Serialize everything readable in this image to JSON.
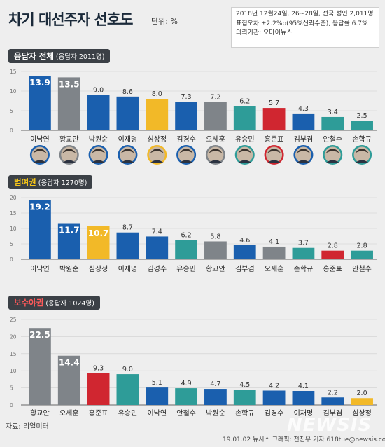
{
  "header": {
    "title": "차기 대선주자 선호도",
    "unit": "단위: %",
    "info_lines": [
      "2018년 12월24일, 26~28일, 전국 성인 2,011명",
      "표집오차 ±2.2%p(95%신뢰수준), 응답률 6.7%",
      "의뢰기관: 오마이뉴스"
    ]
  },
  "colors": {
    "blue": "#1a5fae",
    "gray": "#7f8489",
    "yellow": "#f2b928",
    "teal": "#2e9c98",
    "red": "#d02630",
    "axis": "#666666",
    "grid": "#cfcfcf"
  },
  "chart_data": [
    {
      "type": "bar",
      "title": "응답자 전체",
      "subtitle": "(응답자 2011명)",
      "categories": [
        "이낙연",
        "황교안",
        "박원순",
        "이재명",
        "심상정",
        "김경수",
        "오세훈",
        "유승민",
        "홍준표",
        "김부겸",
        "안철수",
        "손학규"
      ],
      "values": [
        13.9,
        13.5,
        9.0,
        8.6,
        8.0,
        7.3,
        7.2,
        6.2,
        5.7,
        4.3,
        3.4,
        2.5
      ],
      "value_labels": [
        "13.9",
        "13.5",
        "9.0",
        "8.6",
        "8.0",
        "7.3",
        "7.2",
        "6.2",
        "5.7",
        "4.3",
        "3.4",
        "2.5"
      ],
      "colors": [
        "blue",
        "gray",
        "blue",
        "blue",
        "yellow",
        "blue",
        "gray",
        "teal",
        "red",
        "blue",
        "teal",
        "teal"
      ],
      "ylim": [
        0,
        15
      ],
      "yticks": [
        "0",
        "5",
        "10",
        "15"
      ]
    },
    {
      "type": "bar",
      "title": "범여권",
      "subtitle": "(응답자 1270명)",
      "categories": [
        "이낙연",
        "박원순",
        "심상정",
        "이재명",
        "김경수",
        "유승민",
        "황교안",
        "김부겸",
        "오세훈",
        "손학규",
        "홍준표",
        "안철수"
      ],
      "values": [
        19.2,
        11.7,
        10.7,
        8.7,
        7.4,
        6.2,
        5.8,
        4.6,
        4.1,
        3.7,
        2.8,
        2.8
      ],
      "value_labels": [
        "19.2",
        "11.7",
        "10.7",
        "8.7",
        "7.4",
        "6.2",
        "5.8",
        "4.6",
        "4.1",
        "3.7",
        "2.8",
        "2.8"
      ],
      "colors": [
        "blue",
        "blue",
        "yellow",
        "blue",
        "blue",
        "teal",
        "gray",
        "blue",
        "gray",
        "teal",
        "red",
        "teal"
      ],
      "ylim": [
        0,
        20
      ],
      "yticks": [
        "0",
        "5",
        "10",
        "15",
        "20"
      ]
    },
    {
      "type": "bar",
      "title": "보수야권",
      "subtitle": "(응답자 1024명)",
      "categories": [
        "황교안",
        "오세훈",
        "홍준표",
        "유승민",
        "이낙연",
        "안철수",
        "박원순",
        "손학규",
        "김경수",
        "이재명",
        "김부겸",
        "심상정"
      ],
      "values": [
        22.5,
        14.4,
        9.3,
        9.0,
        5.1,
        4.9,
        4.7,
        4.5,
        4.2,
        4.1,
        2.2,
        2.0
      ],
      "value_labels": [
        "22.5",
        "14.4",
        "9.3",
        "9.0",
        "5.1",
        "4.9",
        "4.7",
        "4.5",
        "4.2",
        "4.1",
        "2.2",
        "2.0"
      ],
      "colors": [
        "gray",
        "gray",
        "red",
        "teal",
        "blue",
        "teal",
        "blue",
        "teal",
        "blue",
        "blue",
        "blue",
        "yellow"
      ],
      "ylim": [
        0,
        25
      ],
      "yticks": [
        "0",
        "5",
        "10",
        "15",
        "20",
        "25"
      ]
    }
  ],
  "footer": {
    "source": "자료: 리얼미터",
    "credit": "19.01.02  뉴시스 그래픽: 전진우 기자 618tue@newsis.com",
    "watermark": "NEWSIS"
  }
}
